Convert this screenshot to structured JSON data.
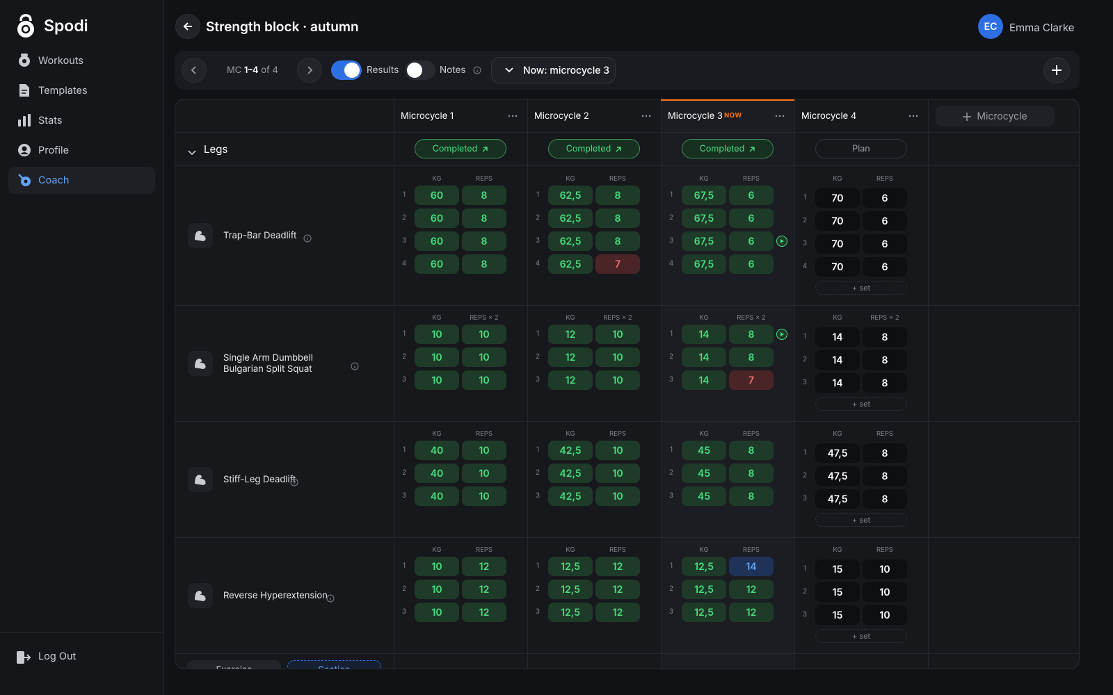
{
  "sidebar": {
    "brand": "Spodi",
    "nav": [
      {
        "label": "Workouts"
      },
      {
        "label": "Templates"
      },
      {
        "label": "Stats"
      },
      {
        "label": "Profile"
      },
      {
        "label": "Coach",
        "active": true
      }
    ],
    "logout": "Log Out"
  },
  "header": {
    "title": "Strength block · autumn",
    "user": {
      "initials": "EC",
      "name": "Emma Clarke"
    }
  },
  "toolbar": {
    "range_prefix": "MC",
    "range": "1–4",
    "range_suffix": "of 4",
    "results": "Results",
    "notes": "Notes",
    "now": "Now: microcycle 3"
  },
  "columns": [
    {
      "title": "Microcycle 1",
      "status": "Completed",
      "state": "done"
    },
    {
      "title": "Microcycle 2",
      "status": "Completed",
      "state": "done"
    },
    {
      "title": "Microcycle 3",
      "badge": "NOW",
      "status": "Completed",
      "state": "done"
    },
    {
      "title": "Microcycle 4",
      "status": "Plan",
      "state": "plan"
    }
  ],
  "add_column": "Microcycle",
  "group": "Legs",
  "kg_label": "KG",
  "add_set": "+ set",
  "footer_buttons": [
    "Exercise",
    "Section"
  ],
  "exercises": [
    {
      "name": "Trap-Bar Deadlift",
      "reps_label": "REPS",
      "cycles": [
        [
          {
            "n": "1",
            "kg": "60",
            "reps": "8"
          },
          {
            "n": "2",
            "kg": "60",
            "reps": "8"
          },
          {
            "n": "3",
            "kg": "60",
            "reps": "8"
          },
          {
            "n": "4",
            "kg": "60",
            "reps": "8"
          }
        ],
        [
          {
            "n": "1",
            "kg": "62,5",
            "reps": "8"
          },
          {
            "n": "2",
            "kg": "62,5",
            "reps": "8"
          },
          {
            "n": "3",
            "kg": "62,5",
            "reps": "8"
          },
          {
            "n": "4",
            "kg": "62,5",
            "reps": "7",
            "flag": "low"
          }
        ],
        [
          {
            "n": "1",
            "kg": "67,5",
            "reps": "6"
          },
          {
            "n": "2",
            "kg": "67,5",
            "reps": "6"
          },
          {
            "n": "3",
            "kg": "67,5",
            "reps": "6",
            "current": true
          },
          {
            "n": "4",
            "kg": "67,5",
            "reps": "6"
          }
        ],
        [
          {
            "n": "1",
            "kg": "70",
            "reps": "6"
          },
          {
            "n": "2",
            "kg": "70",
            "reps": "6"
          },
          {
            "n": "3",
            "kg": "70",
            "reps": "6"
          },
          {
            "n": "4",
            "kg": "70",
            "reps": "6"
          }
        ]
      ]
    },
    {
      "name": "Single Arm Dumbbell Bulgarian Split Squat",
      "reps_label": "REPS × 2",
      "cycles": [
        [
          {
            "n": "1",
            "kg": "10",
            "reps": "10"
          },
          {
            "n": "2",
            "kg": "10",
            "reps": "10"
          },
          {
            "n": "3",
            "kg": "10",
            "reps": "10"
          }
        ],
        [
          {
            "n": "1",
            "kg": "12",
            "reps": "10"
          },
          {
            "n": "2",
            "kg": "12",
            "reps": "10"
          },
          {
            "n": "3",
            "kg": "12",
            "reps": "10"
          }
        ],
        [
          {
            "n": "1",
            "kg": "14",
            "reps": "8",
            "current": true
          },
          {
            "n": "2",
            "kg": "14",
            "reps": "8"
          },
          {
            "n": "3",
            "kg": "14",
            "reps": "7",
            "flag": "low"
          }
        ],
        [
          {
            "n": "1",
            "kg": "14",
            "reps": "8"
          },
          {
            "n": "2",
            "kg": "14",
            "reps": "8"
          },
          {
            "n": "3",
            "kg": "14",
            "reps": "8"
          }
        ]
      ]
    },
    {
      "name": "Stiff-Leg Deadlift",
      "reps_label": "REPS",
      "cycles": [
        [
          {
            "n": "1",
            "kg": "40",
            "reps": "10"
          },
          {
            "n": "2",
            "kg": "40",
            "reps": "10"
          },
          {
            "n": "3",
            "kg": "40",
            "reps": "10"
          }
        ],
        [
          {
            "n": "1",
            "kg": "42,5",
            "reps": "10"
          },
          {
            "n": "2",
            "kg": "42,5",
            "reps": "10"
          },
          {
            "n": "3",
            "kg": "42,5",
            "reps": "10"
          }
        ],
        [
          {
            "n": "1",
            "kg": "45",
            "reps": "8"
          },
          {
            "n": "2",
            "kg": "45",
            "reps": "8"
          },
          {
            "n": "3",
            "kg": "45",
            "reps": "8"
          }
        ],
        [
          {
            "n": "1",
            "kg": "47,5",
            "reps": "8"
          },
          {
            "n": "2",
            "kg": "47,5",
            "reps": "8"
          },
          {
            "n": "3",
            "kg": "47,5",
            "reps": "8"
          }
        ]
      ]
    },
    {
      "name": "Reverse Hyperextension",
      "reps_label": "REPS",
      "cycles": [
        [
          {
            "n": "1",
            "kg": "10",
            "reps": "12"
          },
          {
            "n": "2",
            "kg": "10",
            "reps": "12"
          },
          {
            "n": "3",
            "kg": "10",
            "reps": "12"
          }
        ],
        [
          {
            "n": "1",
            "kg": "12,5",
            "reps": "12"
          },
          {
            "n": "2",
            "kg": "12,5",
            "reps": "12"
          },
          {
            "n": "3",
            "kg": "12,5",
            "reps": "12"
          }
        ],
        [
          {
            "n": "1",
            "kg": "12,5",
            "reps": "14",
            "flag": "high"
          },
          {
            "n": "2",
            "kg": "12,5",
            "reps": "12"
          },
          {
            "n": "3",
            "kg": "12,5",
            "reps": "12"
          }
        ],
        [
          {
            "n": "1",
            "kg": "15",
            "reps": "10"
          },
          {
            "n": "2",
            "kg": "15",
            "reps": "10"
          },
          {
            "n": "3",
            "kg": "15",
            "reps": "10"
          }
        ]
      ]
    }
  ]
}
